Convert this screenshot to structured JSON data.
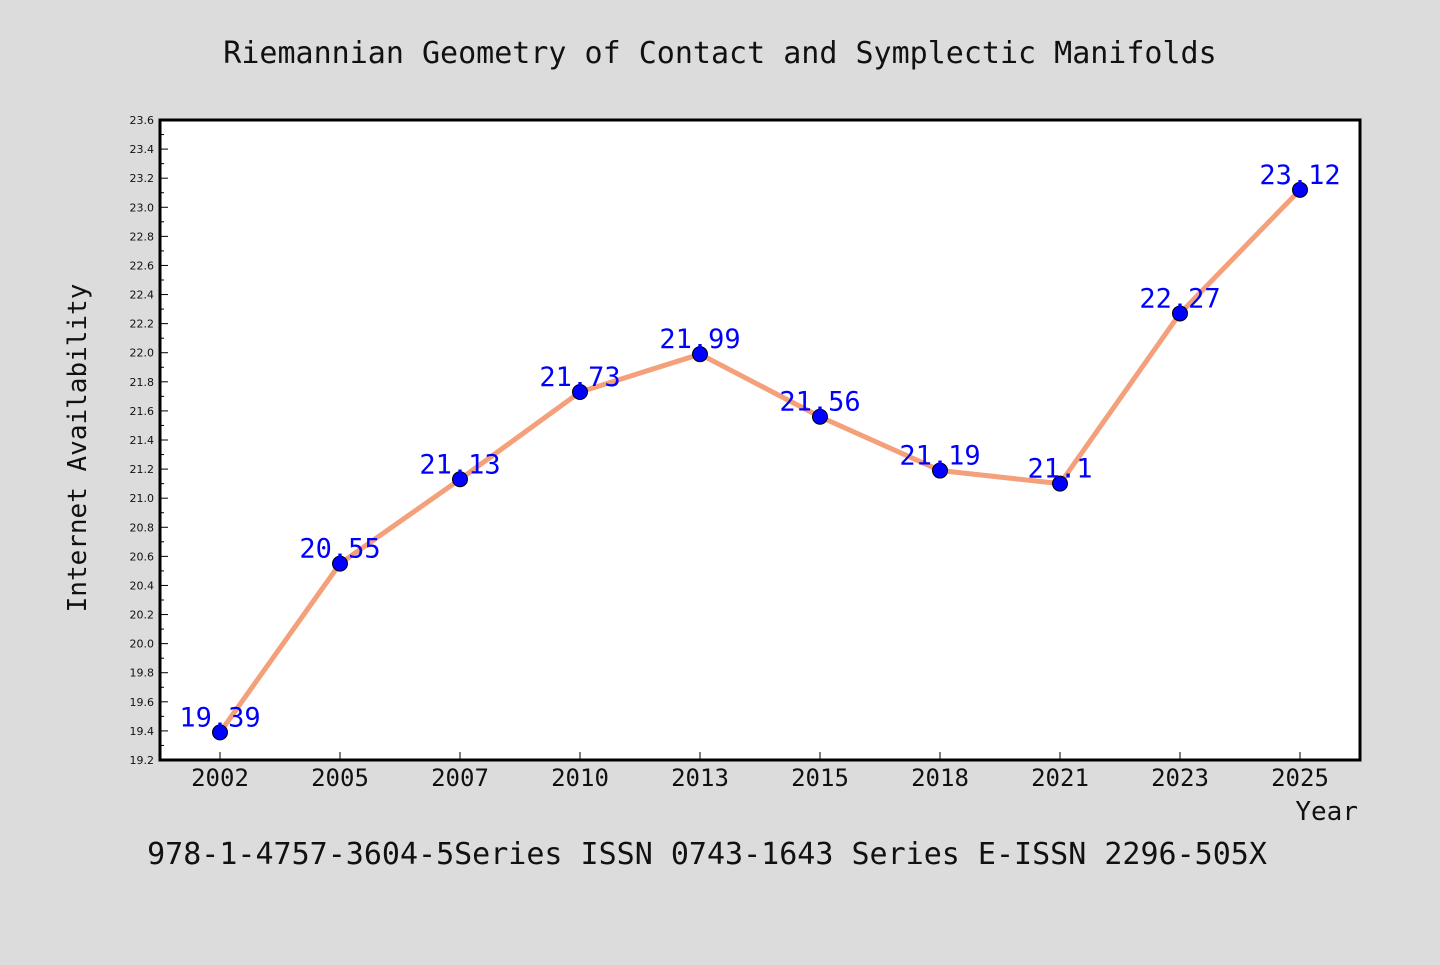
{
  "chart_data": {
    "type": "line",
    "title": "Riemannian Geometry of Contact and Symplectic Manifolds",
    "xlabel": "Year",
    "ylabel": "Internet Availability",
    "categories": [
      "2002",
      "2005",
      "2007",
      "2010",
      "2013",
      "2015",
      "2018",
      "2021",
      "2023",
      "2025"
    ],
    "series": [
      {
        "values": [
          19.39,
          20.55,
          21.13,
          21.73,
          21.99,
          21.56,
          21.19,
          21.1,
          22.27,
          23.12
        ],
        "labels": [
          "19.39",
          "20.55",
          "21.13",
          "21.73",
          "21.99",
          "21.56",
          "21.19",
          "21.1",
          "22.27",
          "23.12"
        ]
      }
    ],
    "ylim": [
      19.2,
      23.6
    ],
    "yticks": [
      "19.2",
      "19.4",
      "19.6",
      "19.8",
      "20.0",
      "20.2",
      "20.4",
      "20.6",
      "20.8",
      "21.0",
      "21.2",
      "21.4",
      "21.6",
      "21.8",
      "22.0",
      "22.2",
      "22.4",
      "22.6",
      "22.8",
      "23.0",
      "23.2",
      "23.4",
      "23.6"
    ],
    "grid": false,
    "legend": "none",
    "line_color": "#f4a07a",
    "marker_color": "#0000ff",
    "label_color": "#0000ff"
  },
  "footer": "978-1-4757-3604-5Series ISSN 0743-1643 Series E-ISSN 2296-505X"
}
